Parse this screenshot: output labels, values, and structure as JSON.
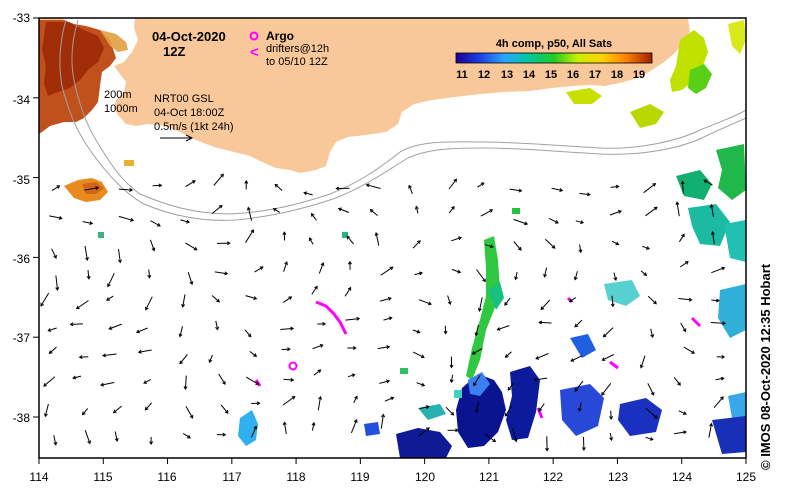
{
  "map": {
    "date": "04-Oct-2020",
    "time": "12Z",
    "legend": {
      "argo_label": "Argo",
      "drifter_line1": "drifters@12h",
      "drifter_line2": "to 05/10 12Z",
      "drifter_marker": "<"
    },
    "colorbar": {
      "title": "4h comp, p50, All Sats",
      "ticks": [
        "11",
        "12",
        "13",
        "14",
        "15",
        "16",
        "17",
        "18",
        "19"
      ]
    },
    "contours": {
      "c200": "200m",
      "c1000": "1000m"
    },
    "product": {
      "line1": "NRT00 GSL",
      "line2": "04-Oct 18:00Z",
      "line3": "0.5m/s (1kt 24h)"
    },
    "lat_ticks": [
      "-33",
      "-34",
      "-35",
      "-36",
      "-37",
      "-38"
    ],
    "lon_ticks": [
      "114",
      "115",
      "116",
      "117",
      "118",
      "119",
      "120",
      "121",
      "122",
      "123",
      "124",
      "125"
    ],
    "credit": "©  IMOS 08-Oct-2020 12:35 Hobart",
    "colors": {
      "land": "#f9c89a",
      "argo": "#ff00ff",
      "sst_scale": [
        "#1a0096",
        "#1f40e0",
        "#2aa6ff",
        "#00c8a0",
        "#22cc22",
        "#c8f000",
        "#ffd000",
        "#ff8000",
        "#c83000",
        "#a01e00"
      ]
    }
  }
}
